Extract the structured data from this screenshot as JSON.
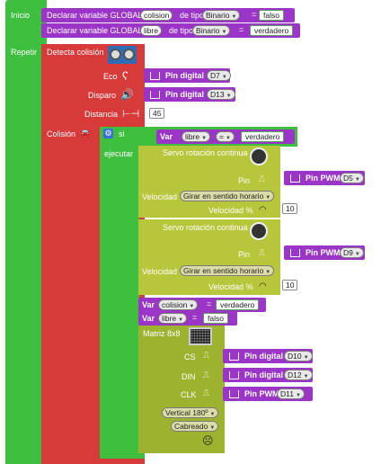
{
  "workspace": {
    "inicio_label": "Inicio",
    "repetir_label": "Repetir",
    "declare1": {
      "label": "Declarar variable GLOBAL",
      "var": "colision",
      "type_label": "de tipo",
      "type": "Binario",
      "eq": "=",
      "value": "falso"
    },
    "declare2": {
      "label": "Declarar variable GLOBAL",
      "var": "libre",
      "type_label": "de tipo",
      "type": "Binario",
      "eq": "=",
      "value": "verdadero"
    },
    "detect": {
      "title": "Detecta colisión",
      "eco_label": "Eco",
      "eco_pin": {
        "label": "Pin digital",
        "value": "D7"
      },
      "disparo_label": "Disparo",
      "disparo_pin": {
        "label": "Pin digital",
        "value": "D13"
      },
      "distancia_label": "Distancia",
      "distancia_value": "45"
    },
    "colision_label": "Colisión",
    "if_block": {
      "si_label": "si",
      "ejecutar_label": "ejecutar",
      "cond_var_label": "Var",
      "cond_var": "libre",
      "cond_op": "=",
      "cond_value": "verdadero"
    },
    "servo1": {
      "title": "Servo rotación continua",
      "pin_label": "Pin",
      "pin": {
        "label": "Pin PWM",
        "value": "D5"
      },
      "velocidad_label": "Velocidad",
      "direction": "Girar en sentido horario",
      "pct_label": "Velocidad %",
      "pct": "10"
    },
    "servo2": {
      "title": "Servo rotación continua",
      "pin_label": "Pin",
      "pin": {
        "label": "Pin PWM",
        "value": "D9"
      },
      "velocidad_label": "Velocidad",
      "direction": "Girar en sentido horario",
      "pct_label": "Velocidad %",
      "pct": "10"
    },
    "set1": {
      "label": "Var",
      "var": "colision",
      "op": "=",
      "value": "verdadero"
    },
    "set2": {
      "label": "Var",
      "var": "libre",
      "op": "=",
      "value": "falso"
    },
    "matrix": {
      "title": "Matriz 8x8",
      "cs_label": "CS",
      "cs_pin": {
        "label": "Pin digital",
        "value": "D10"
      },
      "din_label": "DIN",
      "din_pin": {
        "label": "Pin digital",
        "value": "D12"
      },
      "clk_label": "CLK",
      "clk_pin": {
        "label": "Pin PWM",
        "value": "D11"
      },
      "orientation": "Vertical 180º",
      "expression": "Cabreado"
    }
  }
}
